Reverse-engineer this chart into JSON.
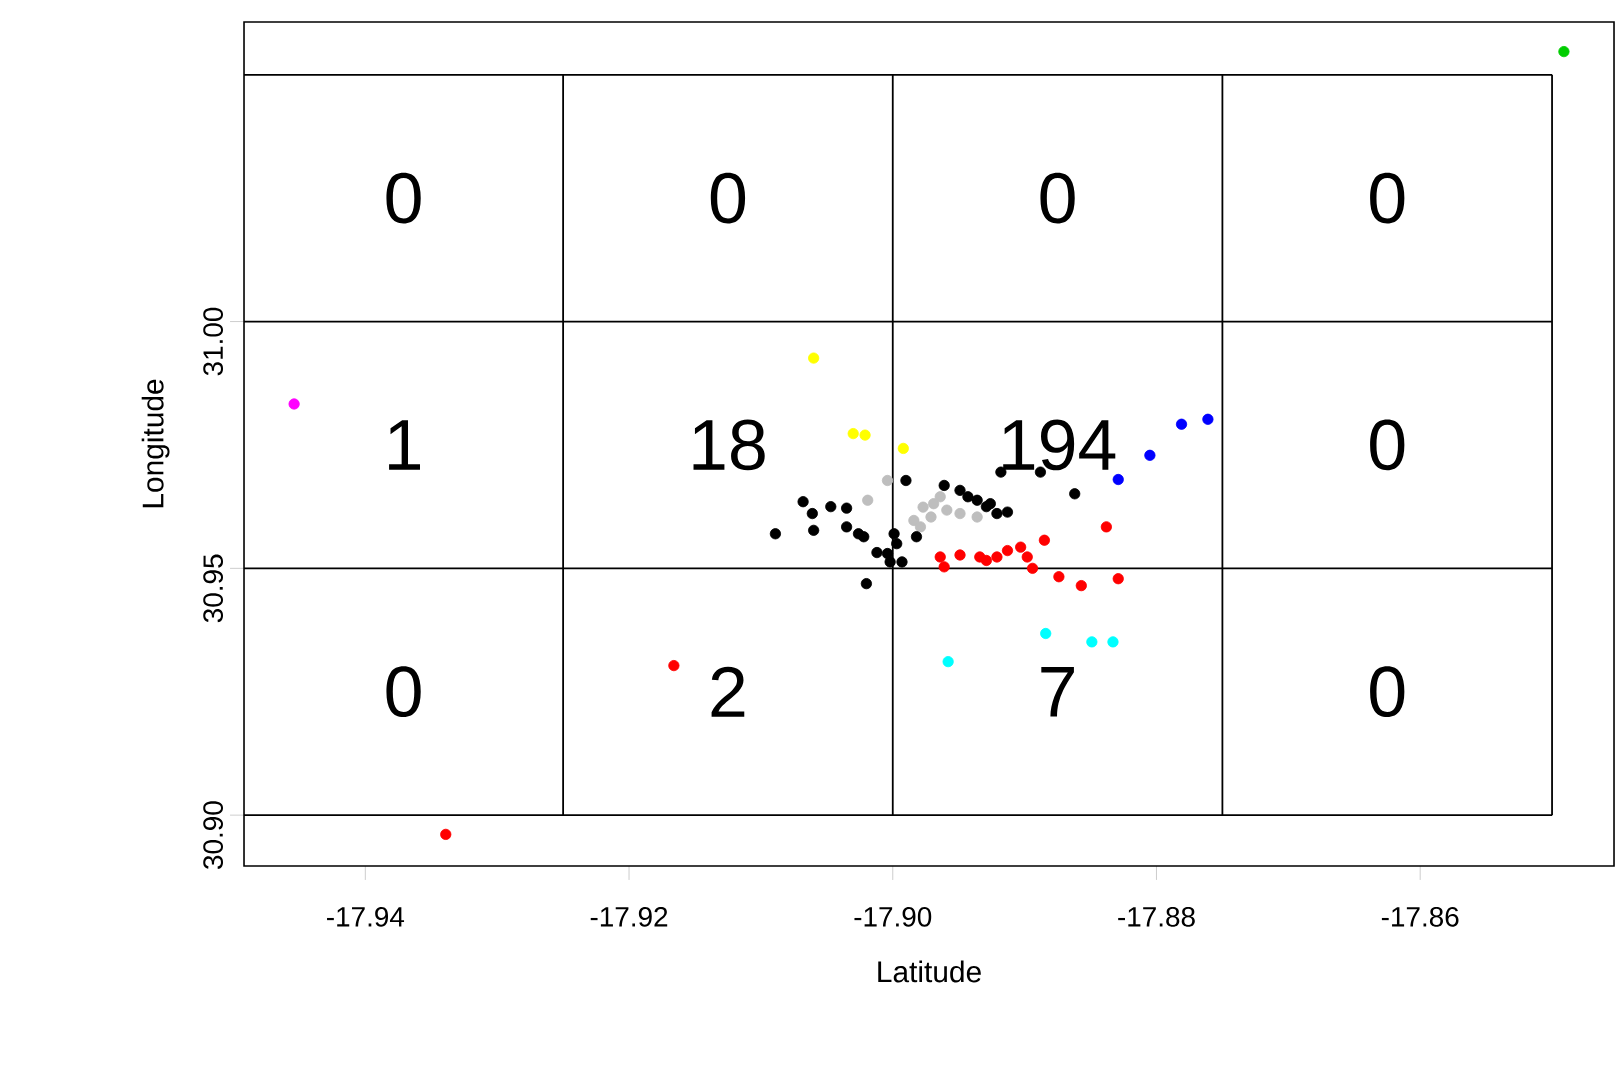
{
  "chart_data": {
    "type": "scatter",
    "xlabel": "Latitude",
    "ylabel": "Longitude",
    "xlim": [
      -17.9492,
      -17.8453
    ],
    "ylim": [
      30.8897,
      31.0607
    ],
    "xticks": [
      {
        "value": -17.94,
        "label": "-17.94"
      },
      {
        "value": -17.92,
        "label": "-17.92"
      },
      {
        "value": -17.9,
        "label": "-17.90"
      },
      {
        "value": -17.88,
        "label": "-17.88"
      },
      {
        "value": -17.86,
        "label": "-17.86"
      }
    ],
    "yticks": [
      {
        "value": 30.9,
        "label": "30.90"
      },
      {
        "value": 30.95,
        "label": "30.95"
      },
      {
        "value": 31.0,
        "label": "31.00"
      }
    ],
    "marker": "circle",
    "grid": false,
    "ref_lines": [
      {
        "axis": "x",
        "value": -17.925
      },
      {
        "axis": "x",
        "value": -17.9
      },
      {
        "axis": "x",
        "value": -17.875
      },
      {
        "axis": "x",
        "value": -17.85
      },
      {
        "axis": "y",
        "value": 31.05
      },
      {
        "axis": "y",
        "value": 31.0
      },
      {
        "axis": "y",
        "value": 30.95
      },
      {
        "axis": "y",
        "value": 30.9
      }
    ],
    "annotations": [
      "0",
      "0",
      "0",
      "0",
      "1",
      "18",
      "194",
      "0",
      "0",
      "2",
      "7",
      "0"
    ],
    "series": [
      {
        "color": "#bebebe",
        "x": [
          -17.9004,
          -17.9019,
          -17.8984,
          -17.8977,
          -17.8969,
          -17.8959,
          -17.8979,
          -17.8949,
          -17.8936,
          -17.8971,
          -17.8964
        ],
        "values": [
          30.9678,
          30.9638,
          30.9597,
          30.9624,
          30.9631,
          30.9618,
          30.9584,
          30.9611,
          30.9604,
          30.9604,
          30.9645
        ]
      },
      {
        "color": "#000000",
        "x": [
          -17.899,
          -17.8961,
          -17.8949,
          -17.8943,
          -17.8936,
          -17.8929,
          -17.8921,
          -17.8913,
          -17.8918,
          -17.8888,
          -17.8862,
          -17.9068,
          -17.9061,
          -17.906,
          -17.9047,
          -17.9035,
          -17.9035,
          -17.9026,
          -17.9022,
          -17.9089,
          -17.8999,
          -17.8997,
          -17.9004,
          -17.9012,
          -17.9002,
          -17.8993,
          -17.902,
          -17.8982,
          -17.8926
        ],
        "values": [
          30.9678,
          30.9668,
          30.9658,
          30.9645,
          30.9638,
          30.9625,
          30.9611,
          30.9614,
          30.9695,
          30.9695,
          30.9651,
          30.9635,
          30.9611,
          30.9577,
          30.9625,
          30.9622,
          30.9584,
          30.957,
          30.9564,
          30.957,
          30.957,
          30.955,
          30.953,
          30.9532,
          30.9513,
          30.9513,
          30.9469,
          30.9564,
          30.9631
        ]
      },
      {
        "color": "#ff0000",
        "x": [
          -17.8964,
          -17.8949,
          -17.8934,
          -17.8921,
          -17.8913,
          -17.8903,
          -17.8898,
          -17.8885,
          -17.8894,
          -17.8874,
          -17.8857,
          -17.8838,
          -17.8829,
          -17.8961,
          -17.8929,
          -17.9166,
          -17.9339
        ],
        "values": [
          30.9523,
          30.9527,
          30.9523,
          30.9523,
          30.9536,
          30.9543,
          30.9523,
          30.9557,
          30.95,
          30.9483,
          30.9465,
          30.9584,
          30.9479,
          30.9503,
          30.9516,
          30.9303,
          30.8961
        ]
      },
      {
        "color": "#ffff00",
        "x": [
          -17.906,
          -17.903,
          -17.9021,
          -17.8992
        ],
        "values": [
          30.9926,
          30.9773,
          30.977,
          30.9743
        ]
      },
      {
        "color": "#0000ff",
        "x": [
          -17.8761,
          -17.8781,
          -17.8805,
          -17.8829
        ],
        "values": [
          30.9802,
          30.9792,
          30.9729,
          30.968
        ]
      },
      {
        "color": "#00ffff",
        "x": [
          -17.8884,
          -17.8849,
          -17.8833,
          -17.8958
        ],
        "values": [
          30.9368,
          30.9351,
          30.9351,
          30.9311
        ]
      },
      {
        "color": "#ff00ff",
        "x": [
          -17.9454
        ],
        "values": [
          30.9833
        ]
      },
      {
        "color": "#00cd00",
        "x": [
          -17.8491
        ],
        "values": [
          31.0547
        ]
      }
    ]
  }
}
